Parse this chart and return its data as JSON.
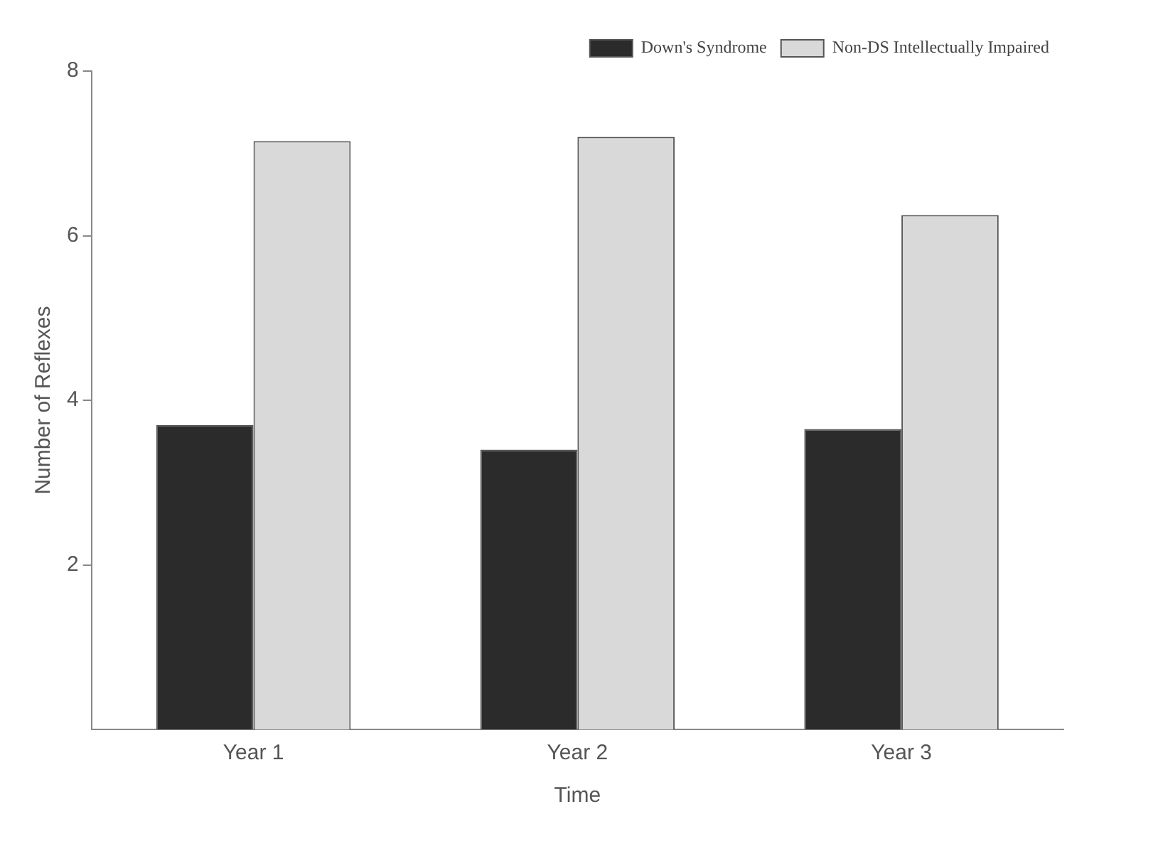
{
  "chart_data": {
    "type": "bar",
    "xlabel": "Time",
    "ylabel": "Number of Reflexes",
    "categories": [
      "Year 1",
      "Year 2",
      "Year 3"
    ],
    "series": [
      {
        "name": "Down's Syndrome",
        "color": "#2b2b2b",
        "values": [
          3.7,
          3.4,
          3.65
        ]
      },
      {
        "name": "Non-DS Intellectually Impaired",
        "color": "#d9d9d9",
        "values": [
          7.15,
          7.2,
          6.25
        ]
      }
    ],
    "ylim": [
      0,
      8
    ],
    "yticks": [
      2,
      4,
      6,
      8
    ],
    "grid": false,
    "legend": "top right"
  }
}
